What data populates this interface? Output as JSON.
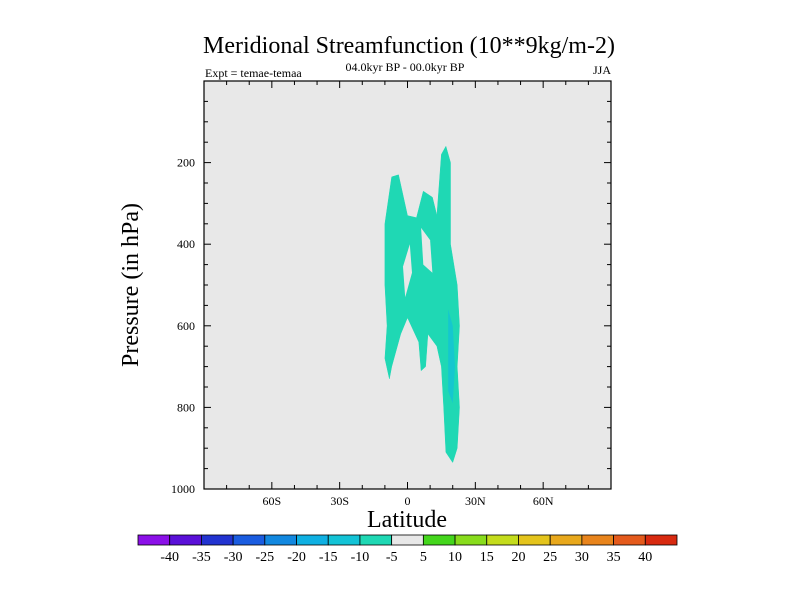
{
  "chart_data": {
    "type": "contour",
    "title": "Meridional Streamfunction (10**9kg/m-2)",
    "subtitle_left": "Expt = temae-temaa",
    "subtitle_center": "04.0kyr BP - 00.0kyr BP",
    "subtitle_right": "JJA",
    "xlabel": "Latitude",
    "ylabel": "Pressure (in hPa)",
    "xlim": [
      -90,
      90
    ],
    "ylim": [
      0,
      1000
    ],
    "y_inverted": true,
    "x_ticks": [
      {
        "value": -60,
        "label": "60S"
      },
      {
        "value": -30,
        "label": "30S"
      },
      {
        "value": 0,
        "label": "0"
      },
      {
        "value": 30,
        "label": "30N"
      },
      {
        "value": 60,
        "label": "60N"
      }
    ],
    "y_ticks": [
      {
        "value": 200,
        "label": "200"
      },
      {
        "value": 400,
        "label": "400"
      },
      {
        "value": 600,
        "label": "600"
      },
      {
        "value": 800,
        "label": "800"
      },
      {
        "value": 1000,
        "label": "1000"
      }
    ],
    "background_level": "-5 to 5",
    "filled_regions": [
      {
        "name": "region-main",
        "level": "-10 to -5",
        "color": "#1fd8b4",
        "points": [
          [
            -10,
            350
          ],
          [
            -7,
            235
          ],
          [
            -4,
            230
          ],
          [
            0,
            330
          ],
          [
            4,
            335
          ],
          [
            7,
            270
          ],
          [
            11,
            285
          ],
          [
            13,
            330
          ],
          [
            15,
            180
          ],
          [
            17,
            160
          ],
          [
            19,
            200
          ],
          [
            19,
            400
          ],
          [
            22,
            500
          ],
          [
            23,
            600
          ],
          [
            22,
            700
          ],
          [
            23,
            800
          ],
          [
            22,
            900
          ],
          [
            20,
            935
          ],
          [
            17,
            910
          ],
          [
            16,
            800
          ],
          [
            15,
            700
          ],
          [
            13,
            650
          ],
          [
            9,
            620
          ],
          [
            8,
            700
          ],
          [
            6,
            710
          ],
          [
            5,
            640
          ],
          [
            0,
            580
          ],
          [
            -3,
            620
          ],
          [
            -7,
            700
          ],
          [
            -8,
            730
          ],
          [
            -10,
            680
          ],
          [
            -9,
            600
          ],
          [
            -10,
            500
          ]
        ]
      }
    ],
    "holes": [
      {
        "name": "gap-1",
        "level": "-5 to 5",
        "points": [
          [
            1,
            400
          ],
          [
            2,
            470
          ],
          [
            -1,
            530
          ],
          [
            -2,
            455
          ]
        ]
      },
      {
        "name": "gap-2",
        "level": "-5 to 5",
        "points": [
          [
            6,
            360
          ],
          [
            10,
            390
          ],
          [
            11,
            470
          ],
          [
            7,
            450
          ]
        ]
      }
    ],
    "accents": [
      {
        "name": "accent-blue",
        "level": "-15 to -10",
        "color": "#13c3d6",
        "points": [
          [
            18,
            560
          ],
          [
            20,
            600
          ],
          [
            21,
            700
          ],
          [
            20,
            790
          ],
          [
            18,
            760
          ],
          [
            18,
            650
          ]
        ]
      }
    ],
    "colorbar": {
      "labels": [
        "-40",
        "-35",
        "-30",
        "-25",
        "-20",
        "-15",
        "-10",
        "-5",
        "5",
        "10",
        "15",
        "20",
        "25",
        "30",
        "35",
        "40"
      ],
      "colors": [
        "#8b10e8",
        "#5a10d8",
        "#2233d0",
        "#1a5ce0",
        "#1288e0",
        "#0fb0e2",
        "#13c3d6",
        "#1fd8b4",
        "#e8e8e8",
        "#44d61c",
        "#88dc1c",
        "#c4dc1c",
        "#e4c41c",
        "#e8a81c",
        "#e8841c",
        "#e45a1c",
        "#d82a10"
      ]
    }
  }
}
